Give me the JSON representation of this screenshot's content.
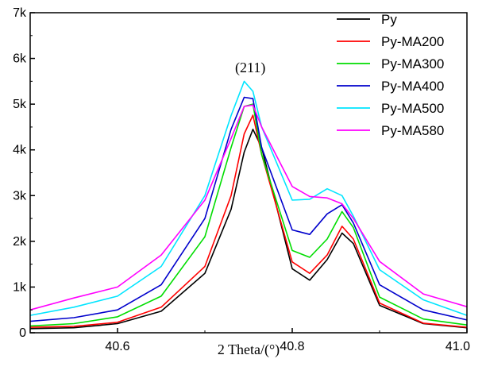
{
  "chart_data": {
    "type": "line",
    "title": "",
    "xlabel": "2 Theta/(°)",
    "ylabel": "",
    "xlim": [
      40.5,
      41.0
    ],
    "ylim": [
      0,
      7000
    ],
    "x_ticks": [
      40.6,
      40.8,
      41.0
    ],
    "x_tick_labels": [
      "40.6",
      "40.8",
      "41.0"
    ],
    "y_ticks": [
      0,
      1000,
      2000,
      3000,
      4000,
      5000,
      6000,
      7000
    ],
    "y_tick_labels": [
      "0",
      "1k",
      "2k",
      "3k",
      "4k",
      "5k",
      "6k",
      "7k"
    ],
    "grid": false,
    "legend_position": "top-right",
    "annotations": [
      {
        "text": "(211)",
        "x": 40.752,
        "y": 5800
      }
    ],
    "x": [
      40.5,
      40.55,
      40.6,
      40.65,
      40.7,
      40.73,
      40.745,
      40.755,
      40.765,
      40.8,
      40.82,
      40.84,
      40.857,
      40.87,
      40.9,
      40.95,
      41.0
    ],
    "series": [
      {
        "name": "Py",
        "color": "#000000",
        "values": [
          90,
          110,
          200,
          470,
          1300,
          2700,
          3950,
          4450,
          4050,
          1400,
          1150,
          1600,
          2180,
          1950,
          600,
          200,
          110
        ]
      },
      {
        "name": "Py-MA200",
        "color": "#ff0000",
        "values": [
          120,
          140,
          230,
          560,
          1450,
          3000,
          4350,
          4760,
          3900,
          1550,
          1300,
          1700,
          2330,
          2050,
          650,
          210,
          120
        ]
      },
      {
        "name": "Py-MA300",
        "color": "#00dd00",
        "values": [
          150,
          200,
          350,
          800,
          2100,
          4050,
          4950,
          5000,
          3900,
          1800,
          1650,
          2050,
          2650,
          2300,
          780,
          300,
          170
        ]
      },
      {
        "name": "Py-MA400",
        "color": "#0000cc",
        "values": [
          250,
          330,
          500,
          1050,
          2500,
          4450,
          5150,
          5120,
          4050,
          2250,
          2150,
          2600,
          2800,
          2400,
          1050,
          500,
          280
        ]
      },
      {
        "name": "Py-MA500",
        "color": "#00e5ff",
        "values": [
          380,
          560,
          800,
          1450,
          3000,
          4750,
          5500,
          5280,
          4500,
          2900,
          2920,
          3150,
          3000,
          2550,
          1380,
          720,
          380
        ]
      },
      {
        "name": "Py-MA580",
        "color": "#ff00ff",
        "values": [
          500,
          760,
          1000,
          1700,
          2900,
          4250,
          4950,
          4980,
          4500,
          3200,
          2980,
          2950,
          2820,
          2500,
          1560,
          850,
          570
        ]
      }
    ]
  }
}
